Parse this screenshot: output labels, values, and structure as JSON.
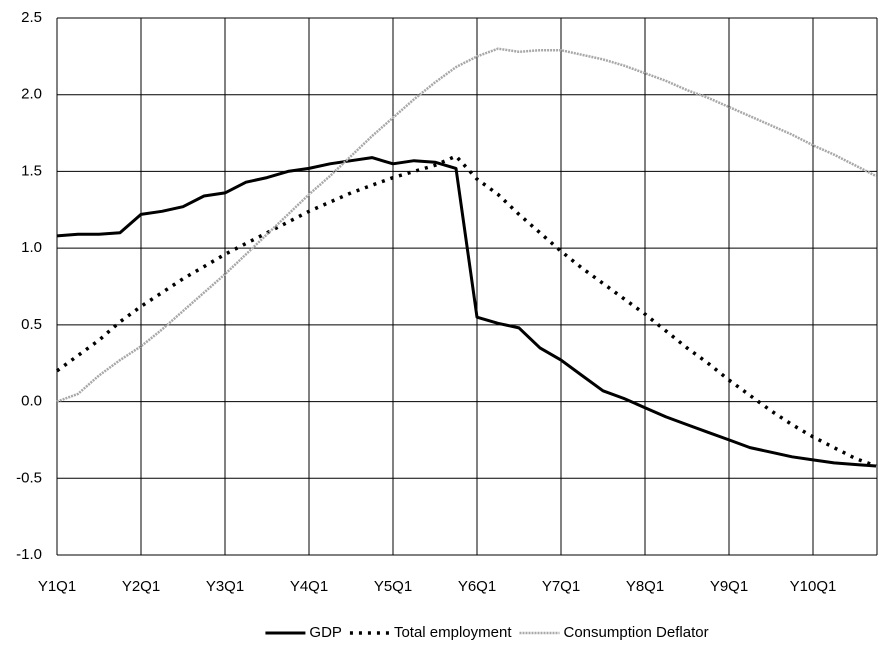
{
  "chart_data": {
    "type": "line",
    "categories": [
      "Y1Q1",
      null,
      null,
      null,
      "Y2Q1",
      null,
      null,
      null,
      "Y3Q1",
      null,
      null,
      null,
      "Y4Q1",
      null,
      null,
      null,
      "Y5Q1",
      null,
      null,
      null,
      "Y6Q1",
      null,
      null,
      null,
      "Y7Q1",
      null,
      null,
      null,
      "Y8Q1",
      null,
      null,
      null,
      "Y9Q1",
      null,
      null,
      null,
      "Y10Q1",
      null,
      null,
      null
    ],
    "series": [
      {
        "name": "GDP",
        "color": "#000000",
        "style": "solid",
        "values": [
          1.08,
          1.09,
          1.09,
          1.1,
          1.22,
          1.24,
          1.27,
          1.34,
          1.36,
          1.43,
          1.46,
          1.5,
          1.52,
          1.55,
          1.57,
          1.59,
          1.55,
          1.57,
          1.56,
          1.52,
          0.55,
          0.51,
          0.48,
          0.35,
          0.27,
          0.17,
          0.07,
          0.02,
          -0.04,
          -0.1,
          -0.15,
          -0.2,
          -0.25,
          -0.3,
          -0.33,
          -0.36,
          -0.38,
          -0.4,
          -0.41,
          -0.42
        ]
      },
      {
        "name": "Total employment",
        "color": "#000000",
        "style": "dotted",
        "values": [
          0.2,
          0.3,
          0.4,
          0.52,
          0.62,
          0.71,
          0.8,
          0.88,
          0.96,
          1.03,
          1.1,
          1.17,
          1.24,
          1.3,
          1.36,
          1.41,
          1.46,
          1.5,
          1.54,
          1.6,
          1.45,
          1.35,
          1.22,
          1.1,
          0.98,
          0.87,
          0.77,
          0.67,
          0.57,
          0.46,
          0.35,
          0.25,
          0.14,
          0.04,
          -0.06,
          -0.15,
          -0.23,
          -0.3,
          -0.37,
          -0.42
        ]
      },
      {
        "name": "Consumption Deflator",
        "color": "#a8a8a8",
        "style": "double",
        "values": [
          0.0,
          0.05,
          0.17,
          0.27,
          0.36,
          0.47,
          0.59,
          0.71,
          0.83,
          0.96,
          1.09,
          1.22,
          1.35,
          1.47,
          1.6,
          1.73,
          1.85,
          1.97,
          2.08,
          2.18,
          2.25,
          2.3,
          2.28,
          2.29,
          2.29,
          2.26,
          2.23,
          2.19,
          2.14,
          2.09,
          2.03,
          1.98,
          1.92,
          1.86,
          1.8,
          1.74,
          1.67,
          1.61,
          1.54,
          1.47
        ]
      }
    ],
    "ylim": [
      -1,
      2.5
    ],
    "yticks": [
      {
        "value": -1,
        "label": "-1.0"
      },
      -0.5,
      {
        "value": 0,
        "label": "0.0"
      },
      0.5,
      {
        "value": 1,
        "label": "1.0"
      },
      1.5,
      {
        "value": 2,
        "label": "2.0"
      },
      2.5
    ],
    "grid": true,
    "legend": "bottom"
  }
}
